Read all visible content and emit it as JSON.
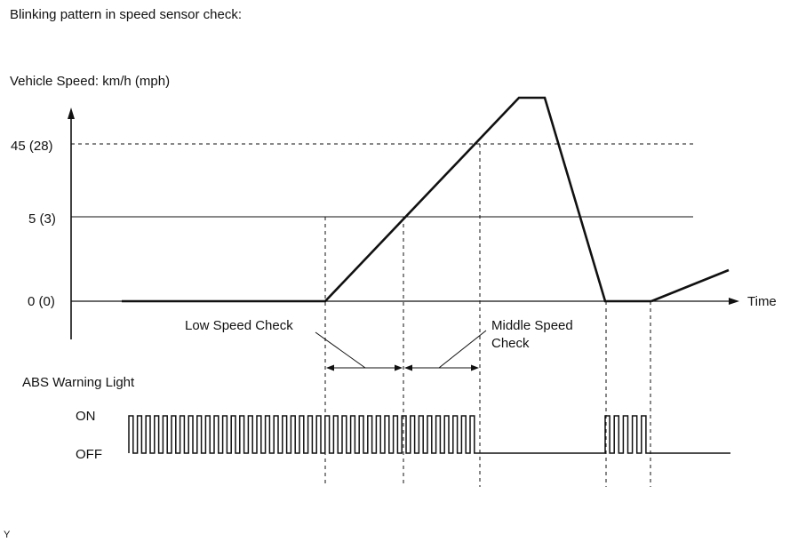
{
  "title": "Blinking pattern in speed sensor check:",
  "speed_axis": {
    "label": "Vehicle Speed: km/h (mph)",
    "ticks": [
      "45 (28)",
      "5 (3)",
      "0 (0)"
    ],
    "time_label": "Time"
  },
  "check_labels": {
    "low": "Low Speed Check",
    "middle_line1": "Middle Speed",
    "middle_line2": "Check"
  },
  "abs": {
    "title": "ABS Warning Light",
    "on_label": "ON",
    "off_label": "OFF"
  },
  "figure_code": "Y",
  "colors": {
    "ink": "#111111",
    "background": "#ffffff"
  }
}
